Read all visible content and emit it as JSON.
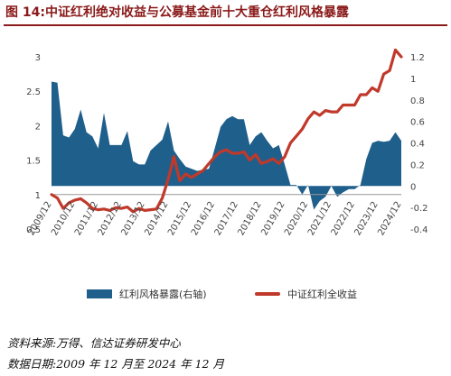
{
  "figure": {
    "title": "图 14:中证红利绝对收益与公募基金前十大重仓红利风格暴露",
    "source": "资料来源:万得、信达证券研发中心",
    "date_range": "数据日期:2009 年 12 月至 2024 年 12 月"
  },
  "colors": {
    "bar": "#1f5f8b",
    "line": "#c0392b",
    "axis": "#999999",
    "title": "#8b1a1a"
  },
  "chart_data": {
    "type": "area",
    "title": "图 14:中证红利绝对收益与公募基金前十大重仓红利风格暴露",
    "x_tick_labels": [
      "2009/12",
      "2010/12",
      "2011/12",
      "2012/12",
      "2013/12",
      "2014/12",
      "2015/12",
      "2016/12",
      "2017/12",
      "2018/12",
      "2019/12",
      "2020/12",
      "2021/12",
      "2022/12",
      "2023/12",
      "2024/12"
    ],
    "left_axis": {
      "ylim": [
        0.5,
        3
      ],
      "ticks": [
        "0.5",
        "1",
        "1.5",
        "2",
        "2.5",
        "3"
      ]
    },
    "right_axis": {
      "ylim": [
        -0.4,
        1.2
      ],
      "ticks": [
        "-0.4",
        "-0.2",
        "0",
        "0.2",
        "0.4",
        "0.6",
        "0.8",
        "1",
        "1.2"
      ]
    },
    "grid": false,
    "legend_position": "bottom",
    "series": [
      {
        "name": "红利风格暴露(右轴)",
        "kind": "area",
        "axis": "right",
        "x": [
          2009.92,
          2010.17,
          2010.42,
          2010.67,
          2010.92,
          2011.17,
          2011.42,
          2011.67,
          2011.92,
          2012.17,
          2012.42,
          2012.67,
          2012.92,
          2013.17,
          2013.42,
          2013.67,
          2013.92,
          2014.17,
          2014.42,
          2014.67,
          2014.92,
          2015.17,
          2015.42,
          2015.67,
          2015.92,
          2016.17,
          2016.42,
          2016.67,
          2016.92,
          2017.17,
          2017.42,
          2017.67,
          2017.92,
          2018.17,
          2018.42,
          2018.67,
          2018.92,
          2019.17,
          2019.42,
          2019.67,
          2019.92,
          2020.17,
          2020.42,
          2020.67,
          2020.92,
          2021.17,
          2021.42,
          2021.67,
          2021.92,
          2022.17,
          2022.42,
          2022.67,
          2022.92,
          2023.17,
          2023.42,
          2023.67,
          2023.92,
          2024.17,
          2024.42,
          2024.67,
          2024.92
        ],
        "values": [
          0.97,
          0.96,
          0.47,
          0.45,
          0.53,
          0.71,
          0.5,
          0.46,
          0.35,
          0.68,
          0.38,
          0.38,
          0.38,
          0.51,
          0.23,
          0.2,
          0.2,
          0.33,
          0.38,
          0.43,
          0.6,
          0.33,
          0.25,
          0.18,
          0.16,
          0.14,
          0.15,
          0.16,
          0.35,
          0.55,
          0.62,
          0.65,
          0.62,
          0.62,
          0.38,
          0.46,
          0.5,
          0.42,
          0.35,
          0.38,
          0.2,
          0.01,
          0.01,
          -0.08,
          0.01,
          -0.22,
          -0.14,
          -0.1,
          0.0,
          -0.1,
          -0.06,
          -0.03,
          -0.03,
          0.01,
          0.25,
          0.4,
          0.42,
          0.41,
          0.42,
          0.5,
          0.42
        ]
      },
      {
        "name": "中证红利全收益",
        "kind": "line",
        "axis": "left",
        "x": [
          2009.92,
          2010.17,
          2010.42,
          2010.67,
          2010.92,
          2011.17,
          2011.42,
          2011.67,
          2011.92,
          2012.17,
          2012.42,
          2012.67,
          2012.92,
          2013.17,
          2013.42,
          2013.67,
          2013.92,
          2014.17,
          2014.42,
          2014.67,
          2014.92,
          2015.17,
          2015.42,
          2015.67,
          2015.92,
          2016.17,
          2016.42,
          2016.67,
          2016.92,
          2017.17,
          2017.42,
          2017.67,
          2017.92,
          2018.17,
          2018.42,
          2018.67,
          2018.92,
          2019.17,
          2019.42,
          2019.67,
          2019.92,
          2020.17,
          2020.42,
          2020.67,
          2020.92,
          2021.17,
          2021.42,
          2021.67,
          2021.92,
          2022.17,
          2022.42,
          2022.67,
          2022.92,
          2023.17,
          2023.42,
          2023.67,
          2023.92,
          2024.17,
          2024.42,
          2024.67,
          2024.92
        ],
        "values": [
          1.0,
          0.95,
          0.8,
          0.88,
          0.92,
          0.94,
          0.88,
          0.8,
          0.78,
          0.79,
          0.77,
          0.81,
          0.8,
          0.82,
          0.75,
          0.8,
          0.77,
          0.78,
          0.79,
          0.95,
          1.22,
          1.55,
          1.2,
          1.3,
          1.25,
          1.3,
          1.35,
          1.45,
          1.55,
          1.62,
          1.65,
          1.6,
          1.6,
          1.62,
          1.5,
          1.58,
          1.45,
          1.48,
          1.52,
          1.45,
          1.55,
          1.75,
          1.85,
          1.95,
          2.1,
          2.2,
          2.15,
          2.22,
          2.2,
          2.2,
          2.3,
          2.3,
          2.3,
          2.45,
          2.45,
          2.55,
          2.5,
          2.75,
          2.8,
          3.1,
          3.0
        ]
      }
    ]
  }
}
